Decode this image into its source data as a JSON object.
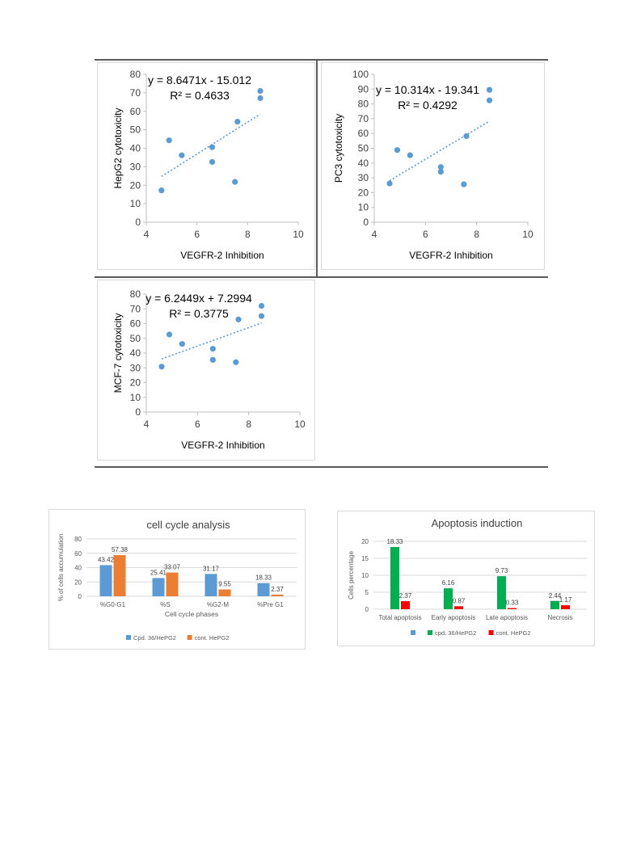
{
  "colors": {
    "scatter_point": "#5b9bd5",
    "trendline": "#5b9bd5",
    "bar_blue": "#5b9bd5",
    "bar_orange": "#ed7d31",
    "bar_green": "#00b050",
    "bar_red": "#ff0000",
    "axis": "#bfbfbf",
    "grid": "#d9d9d9"
  },
  "chart_data": [
    {
      "type": "scatter",
      "xlabel": "VEGFR-2 Inhibition",
      "ylabel": "HepG2 cytotoxicity",
      "xlim": [
        4,
        10
      ],
      "ylim": [
        0,
        80
      ],
      "xticks": [
        "4",
        "6",
        "8",
        "10"
      ],
      "yticks": [
        "0",
        "10",
        "20",
        "30",
        "40",
        "50",
        "60",
        "70",
        "80"
      ],
      "equation": "y = 8.6471x - 15.012",
      "r2": "R² = 0.4633",
      "trend": {
        "slope": 8.6471,
        "intercept": -15.012,
        "x_range": [
          4.6,
          8.5
        ]
      },
      "points": [
        [
          4.6,
          17.2
        ],
        [
          4.9,
          44.3
        ],
        [
          5.4,
          36.2
        ],
        [
          6.6,
          40.6
        ],
        [
          6.6,
          32.6
        ],
        [
          7.5,
          21.8
        ],
        [
          7.6,
          54.4
        ],
        [
          8.5,
          71.0
        ],
        [
          8.5,
          67.1
        ]
      ]
    },
    {
      "type": "scatter",
      "xlabel": "VEGFR-2 Inhibition",
      "ylabel": "PC3 cytotoxicity",
      "xlim": [
        4,
        10
      ],
      "ylim": [
        0,
        100
      ],
      "xticks": [
        "4",
        "6",
        "8",
        "10"
      ],
      "yticks": [
        "0",
        "10",
        "20",
        "30",
        "40",
        "50",
        "60",
        "70",
        "80",
        "90",
        "100"
      ],
      "equation": "y = 10.314x - 19.341",
      "r2": "R² = 0.4292",
      "trend": {
        "slope": 10.314,
        "intercept": -19.341,
        "x_range": [
          4.6,
          8.5
        ]
      },
      "points": [
        [
          4.6,
          26.2
        ],
        [
          4.9,
          48.8
        ],
        [
          5.4,
          45.3
        ],
        [
          6.6,
          37.3
        ],
        [
          6.6,
          34.1
        ],
        [
          7.5,
          25.6
        ],
        [
          7.6,
          58.2
        ],
        [
          8.5,
          89.5
        ],
        [
          8.5,
          82.4
        ]
      ]
    },
    {
      "type": "scatter",
      "xlabel": "VEGFR-2 Inhibition",
      "ylabel": "MCF-7 cytotoxicity",
      "xlim": [
        4,
        10
      ],
      "ylim": [
        0,
        80
      ],
      "xticks": [
        "4",
        "6",
        "8",
        "10"
      ],
      "yticks": [
        "0",
        "10",
        "20",
        "30",
        "40",
        "50",
        "60",
        "70",
        "80"
      ],
      "equation": "y = 6.2449x + 7.2994",
      "r2": "R² = 0.3775",
      "trend": {
        "slope": 6.2449,
        "intercept": 7.2994,
        "x_range": [
          4.6,
          8.5
        ]
      },
      "points": [
        [
          4.6,
          30.8
        ],
        [
          4.9,
          52.6
        ],
        [
          5.4,
          46.2
        ],
        [
          6.6,
          42.9
        ],
        [
          6.6,
          35.4
        ],
        [
          7.5,
          33.8
        ],
        [
          7.6,
          62.8
        ],
        [
          8.5,
          72.0
        ],
        [
          8.5,
          65.1
        ]
      ]
    },
    {
      "type": "bar",
      "title": "cell cycle analysis",
      "xlabel": "Cell cycle phases",
      "ylabel": "% of cells accumulation",
      "ylim": [
        0,
        80
      ],
      "yticks": [
        "0",
        "20",
        "40",
        "60",
        "80"
      ],
      "grid": true,
      "legend_position": "bottom",
      "categories": [
        "%G0-G1",
        "%S",
        "%G2-M",
        "%Pre G1"
      ],
      "series": [
        {
          "name": "Cpd. 36/HePG2",
          "values": [
            43.42,
            25.41,
            31.17,
            18.33
          ],
          "labels": [
            "43.42",
            "25.41",
            "31.17",
            "18.33"
          ]
        },
        {
          "name": "cont. HePG2",
          "values": [
            57.38,
            33.07,
            9.55,
            2.37
          ],
          "labels": [
            "57.38",
            "33.07",
            "9.55",
            "2.37"
          ]
        }
      ]
    },
    {
      "type": "bar",
      "title": "Apoptosis induction",
      "xlabel": "",
      "ylabel": "Cells percentage",
      "ylim": [
        0,
        20
      ],
      "yticks": [
        "0",
        "5",
        "10",
        "15",
        "20"
      ],
      "grid": true,
      "legend_position": "bottom",
      "categories": [
        "Total apoptosis",
        "Early apoptosis",
        "Late apoptosis",
        "Necrosis"
      ],
      "legend": [
        {
          "name": "",
          "color": "#5b9bd5"
        },
        {
          "name": "cpd. 36/HePG2",
          "color": "#00b050"
        },
        {
          "name": "cont. HePG2",
          "color": "#ff0000"
        }
      ],
      "series": [
        {
          "name": "cpd. 36/HePG2",
          "values": [
            18.33,
            6.16,
            9.73,
            2.44
          ],
          "labels": [
            "18.33",
            "6.16",
            "9.73",
            "2.44"
          ]
        },
        {
          "name": "cont. HePG2",
          "values": [
            2.37,
            0.87,
            0.33,
            1.17
          ],
          "labels": [
            "2.37",
            "0.87",
            "0.33",
            "1.17"
          ]
        }
      ]
    }
  ]
}
